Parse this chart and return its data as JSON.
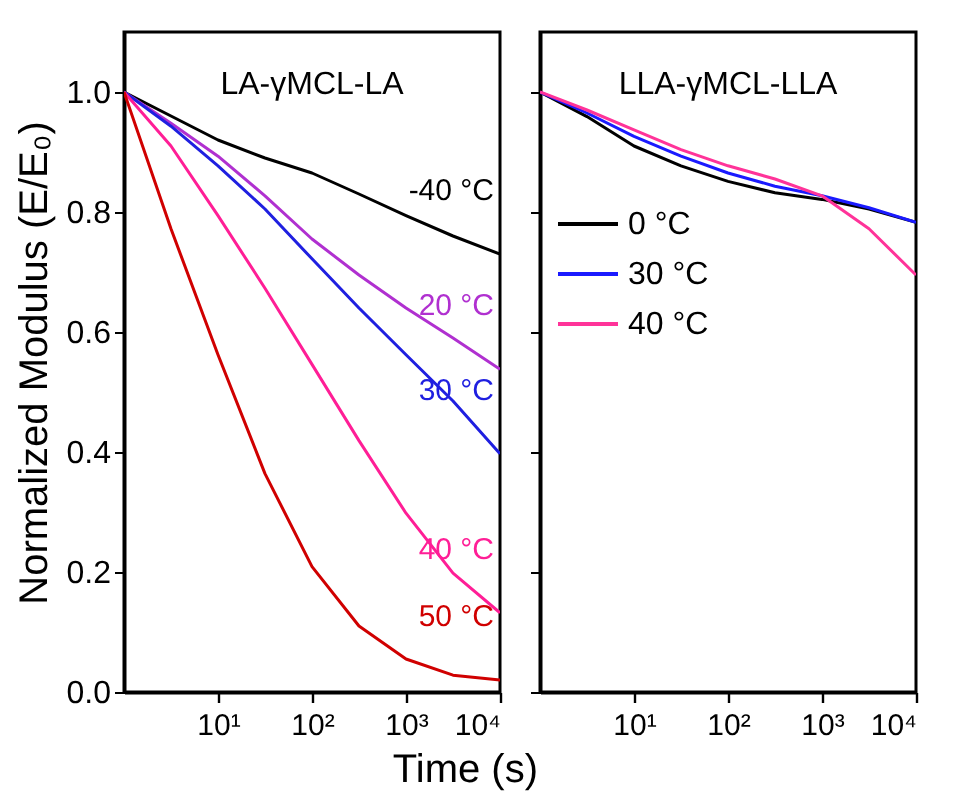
{
  "chart_data": [
    {
      "type": "line",
      "title": "LA-γMCL-LA",
      "xlabel": "Time (s)",
      "ylabel": "Normalized Modulus (E/E₀)",
      "log": "x",
      "xlim": [
        1,
        10000
      ],
      "xticks": [
        {
          "value": 10,
          "label": "10¹"
        },
        {
          "value": 100,
          "label": "10²"
        },
        {
          "value": 1000,
          "label": "10³"
        },
        {
          "value": 10000,
          "label": "10⁴"
        }
      ],
      "ylim": [
        0,
        1.1
      ],
      "yticks": [
        {
          "value": 0,
          "label": "0.0"
        },
        0.2,
        0.4,
        0.6,
        0.8,
        {
          "value": 1,
          "label": "1.0"
        }
      ],
      "x": [
        1,
        3.16,
        10,
        31.6,
        100,
        316,
        1000,
        3162,
        10000
      ],
      "grid": false,
      "legend": false,
      "series": [
        {
          "name": "-40 °C",
          "color": "#000000",
          "values": [
            1.0,
            0.96,
            0.92,
            0.89,
            0.865,
            0.83,
            0.794,
            0.76,
            0.73
          ]
        },
        {
          "name": "20 °C",
          "color": "#b030d0",
          "values": [
            1.0,
            0.948,
            0.893,
            0.827,
            0.755,
            0.695,
            0.64,
            0.59,
            0.538
          ]
        },
        {
          "name": "30 °C",
          "color": "#1f1fe0",
          "values": [
            1.0,
            0.943,
            0.877,
            0.805,
            0.722,
            0.64,
            0.562,
            0.485,
            0.397
          ]
        },
        {
          "name": "40 °C",
          "color": "#ff1e96",
          "values": [
            1.0,
            0.91,
            0.794,
            0.673,
            0.546,
            0.419,
            0.298,
            0.198,
            0.132
          ]
        },
        {
          "name": "50 °C",
          "color": "#d00000",
          "values": [
            1.0,
            0.772,
            0.562,
            0.364,
            0.209,
            0.11,
            0.055,
            0.028,
            0.02
          ]
        }
      ]
    },
    {
      "type": "line",
      "title": "LLA-γMCL-LLA",
      "log": "x",
      "xlim": [
        1,
        10000
      ],
      "xticks": [
        {
          "value": 10,
          "label": "10¹"
        },
        {
          "value": 100,
          "label": "10²"
        },
        {
          "value": 1000,
          "label": "10³"
        },
        {
          "value": 10000,
          "label": "10⁴"
        }
      ],
      "ylim": [
        0,
        1.1
      ],
      "yticks": [
        0,
        0.2,
        0.4,
        0.6,
        0.8,
        1
      ],
      "tick_labels": "x",
      "x": [
        1,
        3.16,
        10,
        31.6,
        100,
        316,
        1000,
        3162,
        10000
      ],
      "grid": false,
      "legend": "top left",
      "series": [
        {
          "name": "0 °C",
          "color": "#000000",
          "values": [
            1.0,
            0.959,
            0.91,
            0.877,
            0.851,
            0.832,
            0.821,
            0.805,
            0.783
          ]
        },
        {
          "name": "30 °C",
          "color": "#1a1aff",
          "values": [
            1.0,
            0.965,
            0.926,
            0.893,
            0.865,
            0.843,
            0.827,
            0.807,
            0.783
          ]
        },
        {
          "name": "40 °C",
          "color": "#ff3399",
          "values": [
            1.0,
            0.97,
            0.937,
            0.904,
            0.877,
            0.855,
            0.827,
            0.772,
            0.695
          ]
        }
      ]
    }
  ]
}
